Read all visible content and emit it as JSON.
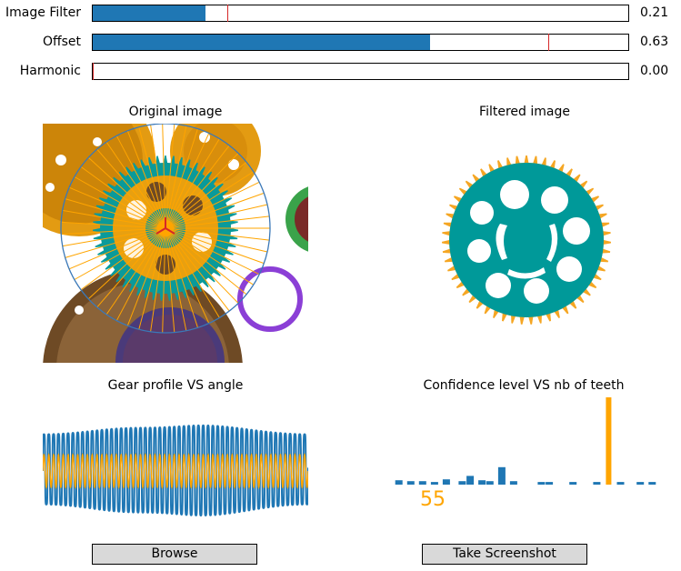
{
  "sliders": [
    {
      "label": "Image Filter",
      "value_text": "0.21",
      "fill": 0.21,
      "marker": 0.252
    },
    {
      "label": "Offset",
      "value_text": "0.63",
      "fill": 0.63,
      "marker": 0.851
    },
    {
      "label": "Harmonic",
      "value_text": "0.00",
      "fill": 0.0,
      "marker": 0.0
    }
  ],
  "panels": {
    "original_title": "Original image",
    "filtered_title": "Filtered image",
    "profile_title": "Gear profile VS angle",
    "confidence_title": "Confidence level VS nb of teeth"
  },
  "confidence": {
    "peak_label": "55"
  },
  "buttons": {
    "browse": "Browse",
    "screenshot": "Take Screenshot"
  },
  "colors": {
    "slider_fill": "#1f77b4",
    "slider_marker": "#d62728",
    "accent_orange": "#ffa500",
    "gear_teal": "#009999",
    "button_bg": "#d9d9d9"
  },
  "chart_data": [
    {
      "type": "line",
      "title": "Gear profile VS angle",
      "series": [
        {
          "color": "#1f77b4",
          "cycles": 55,
          "values_note": ""
        },
        {
          "color": "#ffa500",
          "cycles": 55
        }
      ]
    },
    {
      "type": "bar",
      "title": "Confidence level VS nb of teeth",
      "x": [
        2,
        5,
        8,
        11,
        14,
        18,
        20,
        23,
        25,
        28,
        31,
        38,
        40,
        46,
        52,
        55,
        58,
        63,
        66
      ],
      "values": [
        0.05,
        0.04,
        0.04,
        0.03,
        0.06,
        0.04,
        0.1,
        0.05,
        0.04,
        0.2,
        0.04,
        0.03,
        0.03,
        0.03,
        0.03,
        1.0,
        0.03,
        0.03,
        0.03
      ],
      "peak": 55
    }
  ]
}
